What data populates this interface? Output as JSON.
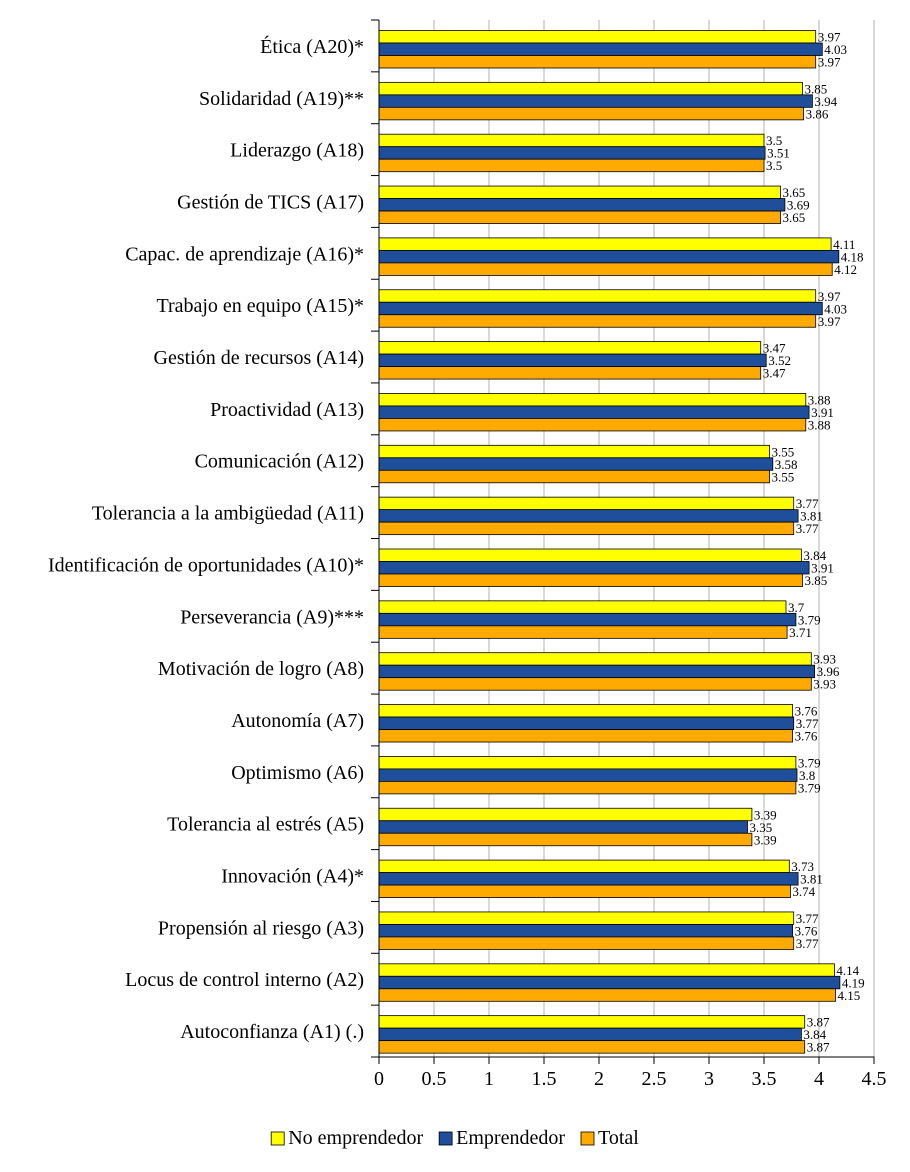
{
  "chart_data": {
    "type": "bar",
    "orientation": "horizontal",
    "categories": [
      "Ética (A20)*",
      "Solidaridad (A19)**",
      "Liderazgo (A18)",
      "Gestión de TICS (A17)",
      "Capac. de aprendizaje (A16)*",
      "Trabajo en equipo (A15)*",
      "Gestión de recursos (A14)",
      "Proactividad (A13)",
      "Comunicación (A12)",
      "Tolerancia a la ambigüedad (A11)",
      "Identificación de oportunidades (A10)*",
      "Perseverancia (A9)***",
      "Motivación de logro (A8)",
      "Autonomía (A7)",
      "Optimismo (A6)",
      "Tolerancia al estrés (A5)",
      "Innovación (A4)*",
      "Propensión al riesgo (A3)",
      "Locus de control interno (A2)",
      "Autoconfianza (A1) (.)"
    ],
    "series": [
      {
        "name": "No emprendedor",
        "color": "#ffff00",
        "values": [
          3.97,
          3.85,
          3.5,
          3.65,
          4.11,
          3.97,
          3.47,
          3.88,
          3.55,
          3.77,
          3.84,
          3.7,
          3.93,
          3.76,
          3.79,
          3.39,
          3.73,
          3.77,
          4.14,
          3.87
        ],
        "labels": [
          "3.97",
          "3.85",
          "3.5",
          "3.65",
          "4.11",
          "3.97",
          "3.47",
          "3.88",
          "3.55",
          "3.77",
          "3.84",
          "3.7",
          "3.93",
          "3.76",
          "3.79",
          "3.39",
          "3.73",
          "3.77",
          "4.14",
          "3.87"
        ]
      },
      {
        "name": "Emprendedor",
        "color": "#1f4e9a",
        "values": [
          4.03,
          3.94,
          3.51,
          3.69,
          4.18,
          4.03,
          3.52,
          3.91,
          3.58,
          3.81,
          3.91,
          3.79,
          3.96,
          3.77,
          3.8,
          3.35,
          3.81,
          3.76,
          4.19,
          3.84
        ],
        "labels": [
          "4.03",
          "3.94",
          "3.51",
          "3.69",
          "4.18",
          "4.03",
          "3.52",
          "3.91",
          "3.58",
          "3.81",
          "3.91",
          "3.79",
          "3.96",
          "3.77",
          "3.8",
          "3.35",
          "3.81",
          "3.76",
          "4.19",
          "3.84"
        ]
      },
      {
        "name": "Total",
        "color": "#ffaa00",
        "values": [
          3.97,
          3.86,
          3.5,
          3.65,
          4.12,
          3.97,
          3.47,
          3.88,
          3.55,
          3.77,
          3.85,
          3.71,
          3.93,
          3.76,
          3.79,
          3.39,
          3.74,
          3.77,
          4.15,
          3.87
        ],
        "labels": [
          "3.97",
          "3.86",
          "3.5",
          "3.65",
          "4.12",
          "3.97",
          "3.47",
          "3.88",
          "3.55",
          "3.77",
          "3.85",
          "3.71",
          "3.93",
          "3.76",
          "3.79",
          "3.39",
          "3.74",
          "3.77",
          "4.15",
          "3.87"
        ]
      }
    ],
    "xlim": [
      0,
      4.5
    ],
    "xticks": [
      "0",
      "0.5",
      "1",
      "1.5",
      "2",
      "2.5",
      "3",
      "3.5",
      "4",
      "4.5"
    ],
    "grid": true,
    "legend_position": "bottom",
    "title": "",
    "xlabel": "",
    "ylabel": ""
  }
}
